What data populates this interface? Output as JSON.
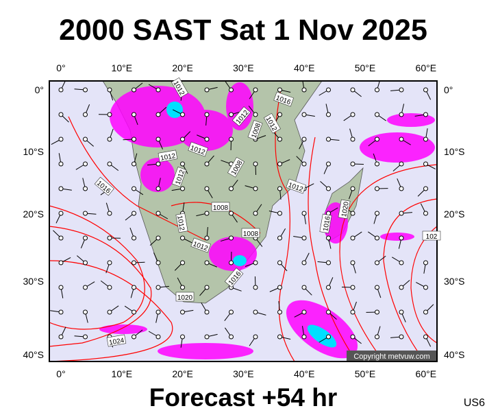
{
  "header": {
    "title": "2000 SAST Sat 1 Nov 2025"
  },
  "footer": {
    "forecast": "Forecast +54 hr",
    "code": "US6"
  },
  "map": {
    "copyright": "Copyright metvuw.com",
    "lon_labels": [
      "0°",
      "10°E",
      "20°E",
      "30°E",
      "40°E",
      "50°E",
      "60°E"
    ],
    "lat_labels": [
      "0°",
      "10°S",
      "20°S",
      "30°S",
      "40°S"
    ],
    "isobar_labels": [
      "1012",
      "1016",
      "1012",
      "1008",
      "1012",
      "1012",
      "1012",
      "1008",
      "1012",
      "1016",
      "1008",
      "1012",
      "1020",
      "1016",
      "1012",
      "1008",
      "1012",
      "1016",
      "1020",
      "1024",
      "102"
    ]
  }
}
